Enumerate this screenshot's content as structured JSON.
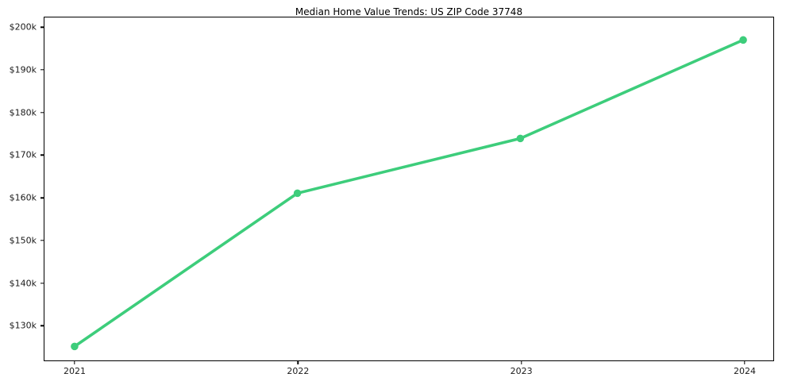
{
  "page": {
    "background_color": "#ffffff"
  },
  "chart_data": {
    "type": "line",
    "title": "Median Home Value Trends: US ZIP Code 37748",
    "x": [
      "2021",
      "2022",
      "2023",
      "2024"
    ],
    "values": [
      124800,
      160900,
      173800,
      197000
    ],
    "xlabel": "",
    "ylabel": "",
    "ylim": [
      121500,
      202300
    ],
    "yticks": [
      130000,
      140000,
      150000,
      160000,
      170000,
      180000,
      190000,
      200000
    ],
    "ytick_labels": [
      "$130k",
      "$140k",
      "$150k",
      "$160k",
      "$170k",
      "$180k",
      "$190k",
      "$200k"
    ],
    "grid": false,
    "legend_position": "none",
    "line_color": "#3dcd7b",
    "marker": "circle",
    "axis_color": "#000000",
    "tick_label_color": "#1a1a1a"
  }
}
